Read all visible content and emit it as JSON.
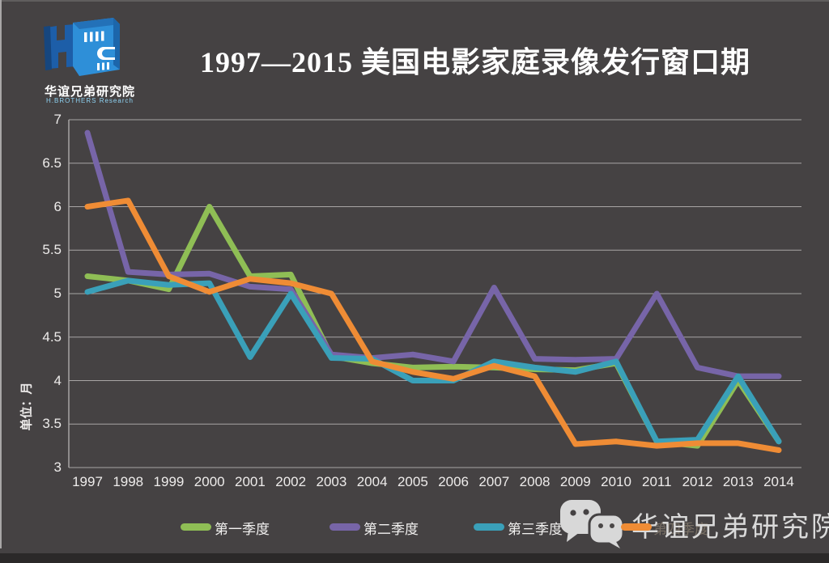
{
  "slide": {
    "title": "1997—2015 美国电影家庭录像发行窗口期"
  },
  "logo": {
    "name_cn": "华谊兄弟研究院",
    "name_en": "H.BROTHERS Research"
  },
  "watermark": {
    "text": "华谊兄弟研究院"
  },
  "colors": {
    "background": "#454243",
    "gridline": "#a8a5a5",
    "axis_text": "#eeeceb",
    "title_text": "#ffffff",
    "watermark_text": "#dadada",
    "q1_green": "#8fbe55",
    "q2_purple": "#7765a8",
    "q3_teal": "#3aa0b9",
    "q4_orange": "#ef8c35",
    "logo_blue": "#2e8fd8"
  },
  "chart_data": {
    "type": "line",
    "title": "1997—2015 美国电影家庭录像发行窗口期",
    "xlabel": "",
    "ylabel": "单位：月",
    "ylim": [
      3,
      7
    ],
    "ytick_step": 0.5,
    "yticks": [
      "7",
      "6.5",
      "6",
      "5.5",
      "5",
      "4.5",
      "4",
      "3.5",
      "3"
    ],
    "grid": true,
    "legend_position": "bottom",
    "categories": [
      "1997",
      "1998",
      "1999",
      "2000",
      "2001",
      "2002",
      "2003",
      "2004",
      "2005",
      "2006",
      "2007",
      "2008",
      "2009",
      "2010",
      "2011",
      "2012",
      "2013",
      "2014"
    ],
    "series": [
      {
        "name": "第一季度",
        "color": "#8fbe55",
        "values": [
          5.2,
          5.15,
          5.05,
          6.0,
          5.2,
          5.22,
          4.28,
          4.2,
          4.15,
          4.16,
          4.15,
          4.13,
          4.12,
          4.2,
          3.3,
          3.25,
          4.0,
          3.3
        ]
      },
      {
        "name": "第二季度",
        "color": "#7765a8",
        "values": [
          6.85,
          5.25,
          5.22,
          5.23,
          5.08,
          5.05,
          4.3,
          4.26,
          4.3,
          4.22,
          5.07,
          4.25,
          4.24,
          4.25,
          5.0,
          4.15,
          4.05,
          4.05
        ]
      },
      {
        "name": "第三季度",
        "color": "#3aa0b9",
        "values": [
          5.02,
          5.15,
          5.1,
          5.12,
          4.27,
          5.0,
          4.26,
          4.25,
          4.0,
          4.0,
          4.22,
          4.15,
          4.1,
          4.22,
          3.3,
          3.32,
          4.05,
          3.3
        ]
      },
      {
        "name": "第四季度",
        "color": "#ef8c35",
        "values": [
          6.0,
          6.07,
          5.2,
          5.02,
          5.17,
          5.12,
          5.0,
          4.22,
          4.1,
          4.02,
          4.17,
          4.05,
          3.27,
          3.3,
          3.25,
          3.28,
          3.28,
          3.2
        ]
      }
    ]
  }
}
